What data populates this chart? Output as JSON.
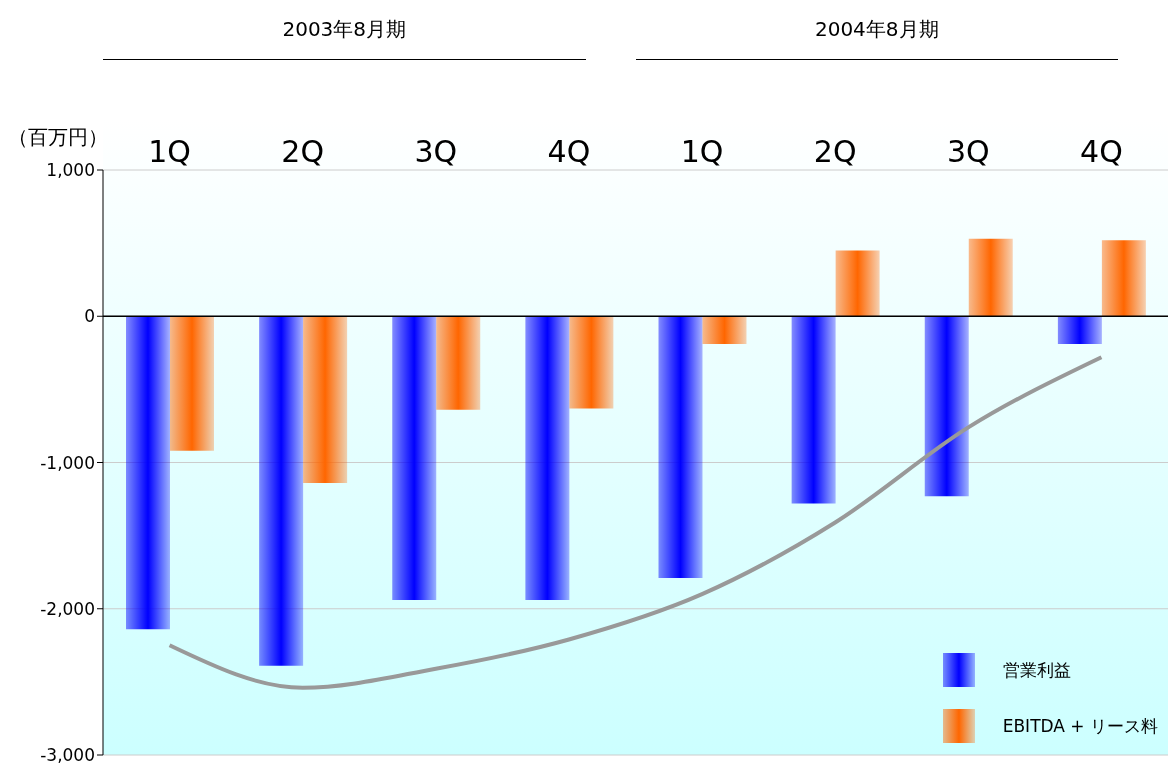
{
  "chart_data": {
    "type": "bar",
    "ylabel": "（百万円）",
    "categories": [
      "1Q",
      "2Q",
      "3Q",
      "4Q",
      "1Q",
      "2Q",
      "3Q",
      "4Q"
    ],
    "annotations": [
      "2003年8月期",
      "2004年8月期"
    ],
    "series": [
      {
        "name": "営業利益",
        "color": "#0000ff",
        "values": [
          -2140,
          -2390,
          -1940,
          -1940,
          -1790,
          -1280,
          -1230,
          -190
        ]
      },
      {
        "name": "EBITDA + リース料",
        "color": "#ff6600",
        "values": [
          -920,
          -1140,
          -640,
          -630,
          -190,
          450,
          530,
          520
        ]
      },
      {
        "type": "line",
        "color": "#999999",
        "values": [
          -2250,
          -2540,
          -2410,
          -2210,
          -1900,
          -1410,
          -760,
          -280
        ]
      }
    ],
    "ylim": [
      -3000,
      1000
    ],
    "yticks": [
      {
        "value": -3000,
        "label": "-3,000"
      },
      {
        "value": -2000,
        "label": "-2,000"
      },
      {
        "value": -1000,
        "label": "-1,000"
      },
      0,
      {
        "value": 1000,
        "label": "1,000"
      }
    ],
    "ref_lines": [
      {
        "axis": "y",
        "value": 0,
        "color": "#000000"
      }
    ],
    "grid": "y",
    "legend": "bottom right"
  }
}
